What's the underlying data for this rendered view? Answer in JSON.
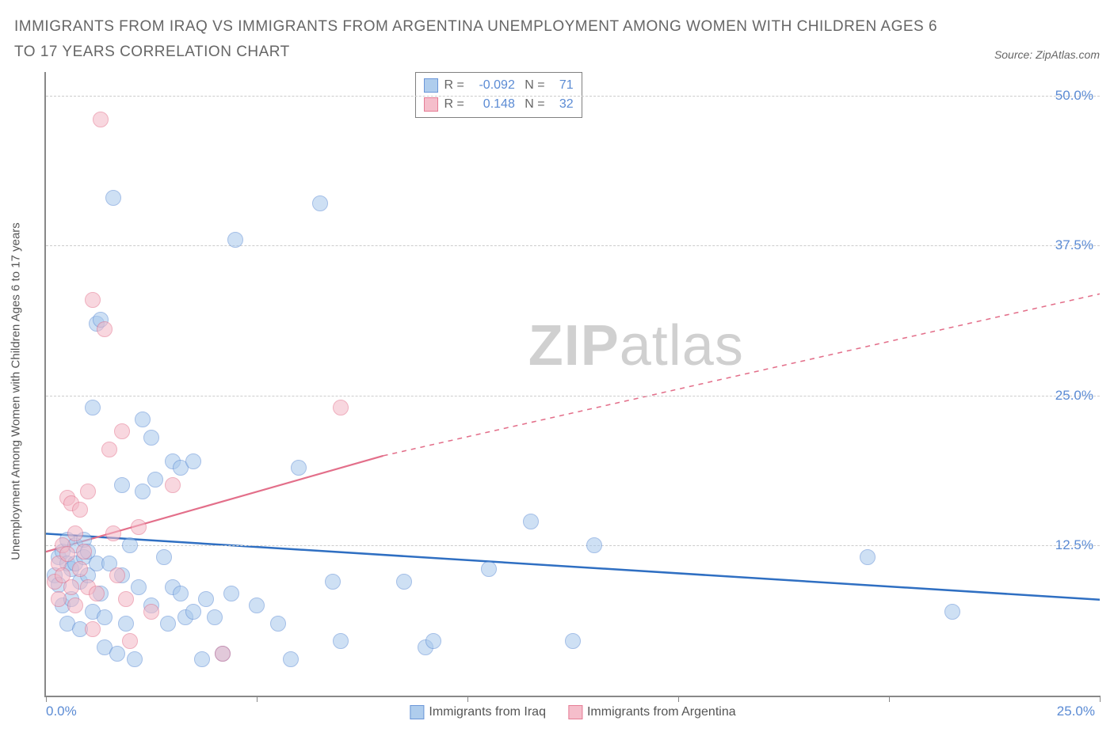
{
  "title": "IMMIGRANTS FROM IRAQ VS IMMIGRANTS FROM ARGENTINA UNEMPLOYMENT AMONG WOMEN WITH CHILDREN AGES 6 TO 17 YEARS CORRELATION CHART",
  "source_prefix": "Source: ",
  "source_name": "ZipAtlas.com",
  "ylabel": "Unemployment Among Women with Children Ages 6 to 17 years",
  "watermark": {
    "bold": "ZIP",
    "light": "atlas"
  },
  "chart": {
    "type": "scatter",
    "x_domain": [
      0,
      25
    ],
    "y_domain": [
      0,
      52
    ],
    "x_ticks": [
      0,
      5,
      10,
      15,
      20,
      25
    ],
    "x_tick_labels": {
      "0": "0.0%",
      "25": "25.0%"
    },
    "y_gridlines": [
      12.5,
      25.0,
      37.5,
      50.0
    ],
    "y_tick_labels": [
      "12.5%",
      "25.0%",
      "37.5%",
      "50.0%"
    ],
    "grid_color": "#cccccc",
    "axis_color": "#888888",
    "background": "#ffffff",
    "tick_label_color": "#5b8bd4",
    "marker_radius": 10,
    "marker_border_width": 1.5,
    "series": [
      {
        "id": "iraq",
        "name": "Immigrants from Iraq",
        "fill": "#a7c8ec",
        "stroke": "#5b8bd4",
        "fill_opacity": 0.55,
        "R": "-0.092",
        "N": "71",
        "regression": {
          "solid": {
            "x1": 0,
            "y1": 13.5,
            "x2": 25,
            "y2": 8.0
          },
          "color": "#2f6fc2",
          "width": 2.5
        },
        "points": [
          [
            0.2,
            10.0
          ],
          [
            0.3,
            11.5
          ],
          [
            0.3,
            9.2
          ],
          [
            0.4,
            12.0
          ],
          [
            0.4,
            7.5
          ],
          [
            0.5,
            11.0
          ],
          [
            0.5,
            13.0
          ],
          [
            0.5,
            6.0
          ],
          [
            0.6,
            10.5
          ],
          [
            0.6,
            8.0
          ],
          [
            0.7,
            12.5
          ],
          [
            0.7,
            11.0
          ],
          [
            0.8,
            9.5
          ],
          [
            0.8,
            5.5
          ],
          [
            0.9,
            11.5
          ],
          [
            0.9,
            13.0
          ],
          [
            1.0,
            10.0
          ],
          [
            1.0,
            12.0
          ],
          [
            1.1,
            7.0
          ],
          [
            1.1,
            24.0
          ],
          [
            1.2,
            11.0
          ],
          [
            1.2,
            31.0
          ],
          [
            1.3,
            8.5
          ],
          [
            1.3,
            31.3
          ],
          [
            1.4,
            6.5
          ],
          [
            1.4,
            4.0
          ],
          [
            1.5,
            11.0
          ],
          [
            1.6,
            41.5
          ],
          [
            1.7,
            3.5
          ],
          [
            1.8,
            10.0
          ],
          [
            1.8,
            17.5
          ],
          [
            1.9,
            6.0
          ],
          [
            2.0,
            12.5
          ],
          [
            2.1,
            3.0
          ],
          [
            2.2,
            9.0
          ],
          [
            2.3,
            23.0
          ],
          [
            2.3,
            17.0
          ],
          [
            2.5,
            7.5
          ],
          [
            2.5,
            21.5
          ],
          [
            2.6,
            18.0
          ],
          [
            2.8,
            11.5
          ],
          [
            2.9,
            6.0
          ],
          [
            3.0,
            19.5
          ],
          [
            3.0,
            9.0
          ],
          [
            3.2,
            8.5
          ],
          [
            3.2,
            19.0
          ],
          [
            3.3,
            6.5
          ],
          [
            3.5,
            19.5
          ],
          [
            3.5,
            7.0
          ],
          [
            3.7,
            3.0
          ],
          [
            3.8,
            8.0
          ],
          [
            4.0,
            6.5
          ],
          [
            4.2,
            3.5
          ],
          [
            4.4,
            8.5
          ],
          [
            4.5,
            38.0
          ],
          [
            5.0,
            7.5
          ],
          [
            5.5,
            6.0
          ],
          [
            5.8,
            3.0
          ],
          [
            6.0,
            19.0
          ],
          [
            6.5,
            41.0
          ],
          [
            6.8,
            9.5
          ],
          [
            7.0,
            4.5
          ],
          [
            8.5,
            9.5
          ],
          [
            9.0,
            4.0
          ],
          [
            9.2,
            4.5
          ],
          [
            10.5,
            10.5
          ],
          [
            11.5,
            14.5
          ],
          [
            12.5,
            4.5
          ],
          [
            13.0,
            12.5
          ],
          [
            19.5,
            11.5
          ],
          [
            21.5,
            7.0
          ]
        ]
      },
      {
        "id": "argentina",
        "name": "Immigrants from Argentina",
        "fill": "#f4b8c6",
        "stroke": "#e36f8a",
        "fill_opacity": 0.55,
        "R": "0.148",
        "N": "32",
        "regression": {
          "solid": {
            "x1": 0,
            "y1": 12.0,
            "x2": 8.0,
            "y2": 20.0
          },
          "dashed": {
            "x1": 8.0,
            "y1": 20.0,
            "x2": 25,
            "y2": 33.5
          },
          "color": "#e36f8a",
          "width": 2.2
        },
        "points": [
          [
            0.2,
            9.5
          ],
          [
            0.3,
            11.0
          ],
          [
            0.3,
            8.0
          ],
          [
            0.4,
            12.5
          ],
          [
            0.4,
            10.0
          ],
          [
            0.5,
            11.8
          ],
          [
            0.5,
            16.5
          ],
          [
            0.6,
            9.0
          ],
          [
            0.6,
            16.0
          ],
          [
            0.7,
            7.5
          ],
          [
            0.7,
            13.5
          ],
          [
            0.8,
            10.5
          ],
          [
            0.8,
            15.5
          ],
          [
            0.9,
            12.0
          ],
          [
            1.0,
            9.0
          ],
          [
            1.0,
            17.0
          ],
          [
            1.1,
            5.5
          ],
          [
            1.1,
            33.0
          ],
          [
            1.2,
            8.5
          ],
          [
            1.3,
            48.0
          ],
          [
            1.4,
            30.5
          ],
          [
            1.5,
            20.5
          ],
          [
            1.6,
            13.5
          ],
          [
            1.7,
            10.0
          ],
          [
            1.8,
            22.0
          ],
          [
            1.9,
            8.0
          ],
          [
            2.0,
            4.5
          ],
          [
            2.2,
            14.0
          ],
          [
            2.5,
            7.0
          ],
          [
            3.0,
            17.5
          ],
          [
            4.2,
            3.5
          ],
          [
            7.0,
            24.0
          ]
        ]
      }
    ]
  }
}
